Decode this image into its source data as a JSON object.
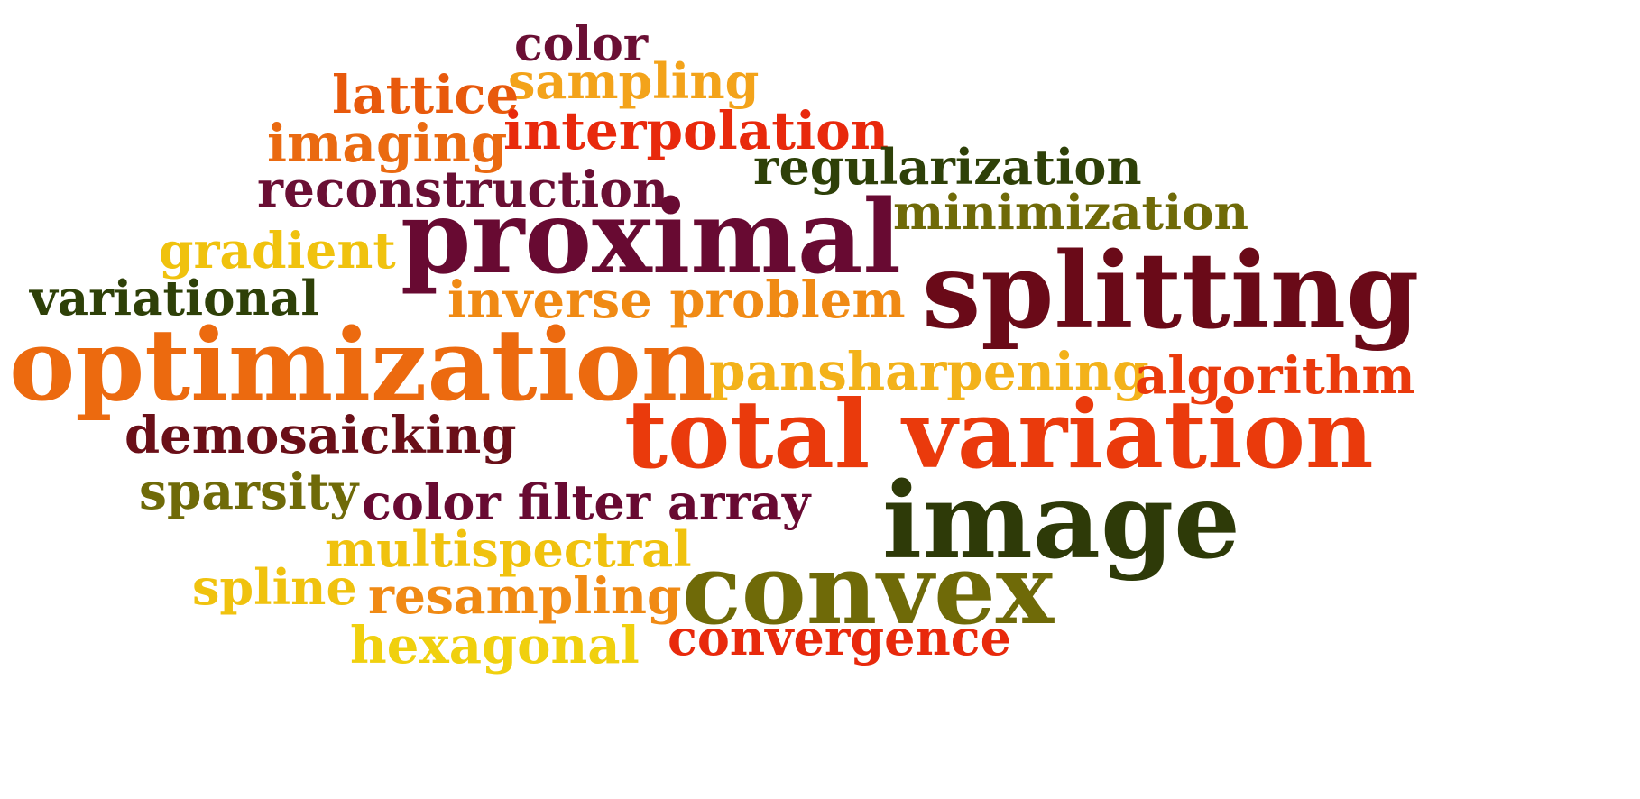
{
  "words": [
    {
      "text": "color",
      "color": "#6a0f34"
    },
    {
      "text": "sampling",
      "color": "#f3a31a"
    },
    {
      "text": "lattice",
      "color": "#e8590c"
    },
    {
      "text": "interpolation",
      "color": "#e8290c"
    },
    {
      "text": "imaging",
      "color": "#ea6a11"
    },
    {
      "text": "regularization",
      "color": "#2e4008"
    },
    {
      "text": "reconstruction",
      "color": "#6a0f34"
    },
    {
      "text": "minimization",
      "color": "#6f6a08"
    },
    {
      "text": "proximal",
      "color": "#680a32"
    },
    {
      "text": "gradient",
      "color": "#f0c20e"
    },
    {
      "text": "splitting",
      "color": "#6a0a18"
    },
    {
      "text": "variational",
      "color": "#2e4008"
    },
    {
      "text": "inverse problem",
      "color": "#f08a14"
    },
    {
      "text": "optimization",
      "color": "#ec6a0f"
    },
    {
      "text": "pansharpening",
      "color": "#f3b21a"
    },
    {
      "text": "algorithm",
      "color": "#ea3a0c"
    },
    {
      "text": "demosaicking",
      "color": "#6a0f18"
    },
    {
      "text": "total variation",
      "color": "#ea3a0c"
    },
    {
      "text": "sparsity",
      "color": "#6f6a08"
    },
    {
      "text": "color filter array",
      "color": "#680a32"
    },
    {
      "text": "image",
      "color": "#2e3a08"
    },
    {
      "text": "multispectral",
      "color": "#f0c20e"
    },
    {
      "text": "spline",
      "color": "#f0c20e"
    },
    {
      "text": "resampling",
      "color": "#f08a14"
    },
    {
      "text": "convex",
      "color": "#6f6a08"
    },
    {
      "text": "convergence",
      "color": "#e8290c"
    },
    {
      "text": "hexagonal",
      "color": "#f0d00e"
    }
  ]
}
